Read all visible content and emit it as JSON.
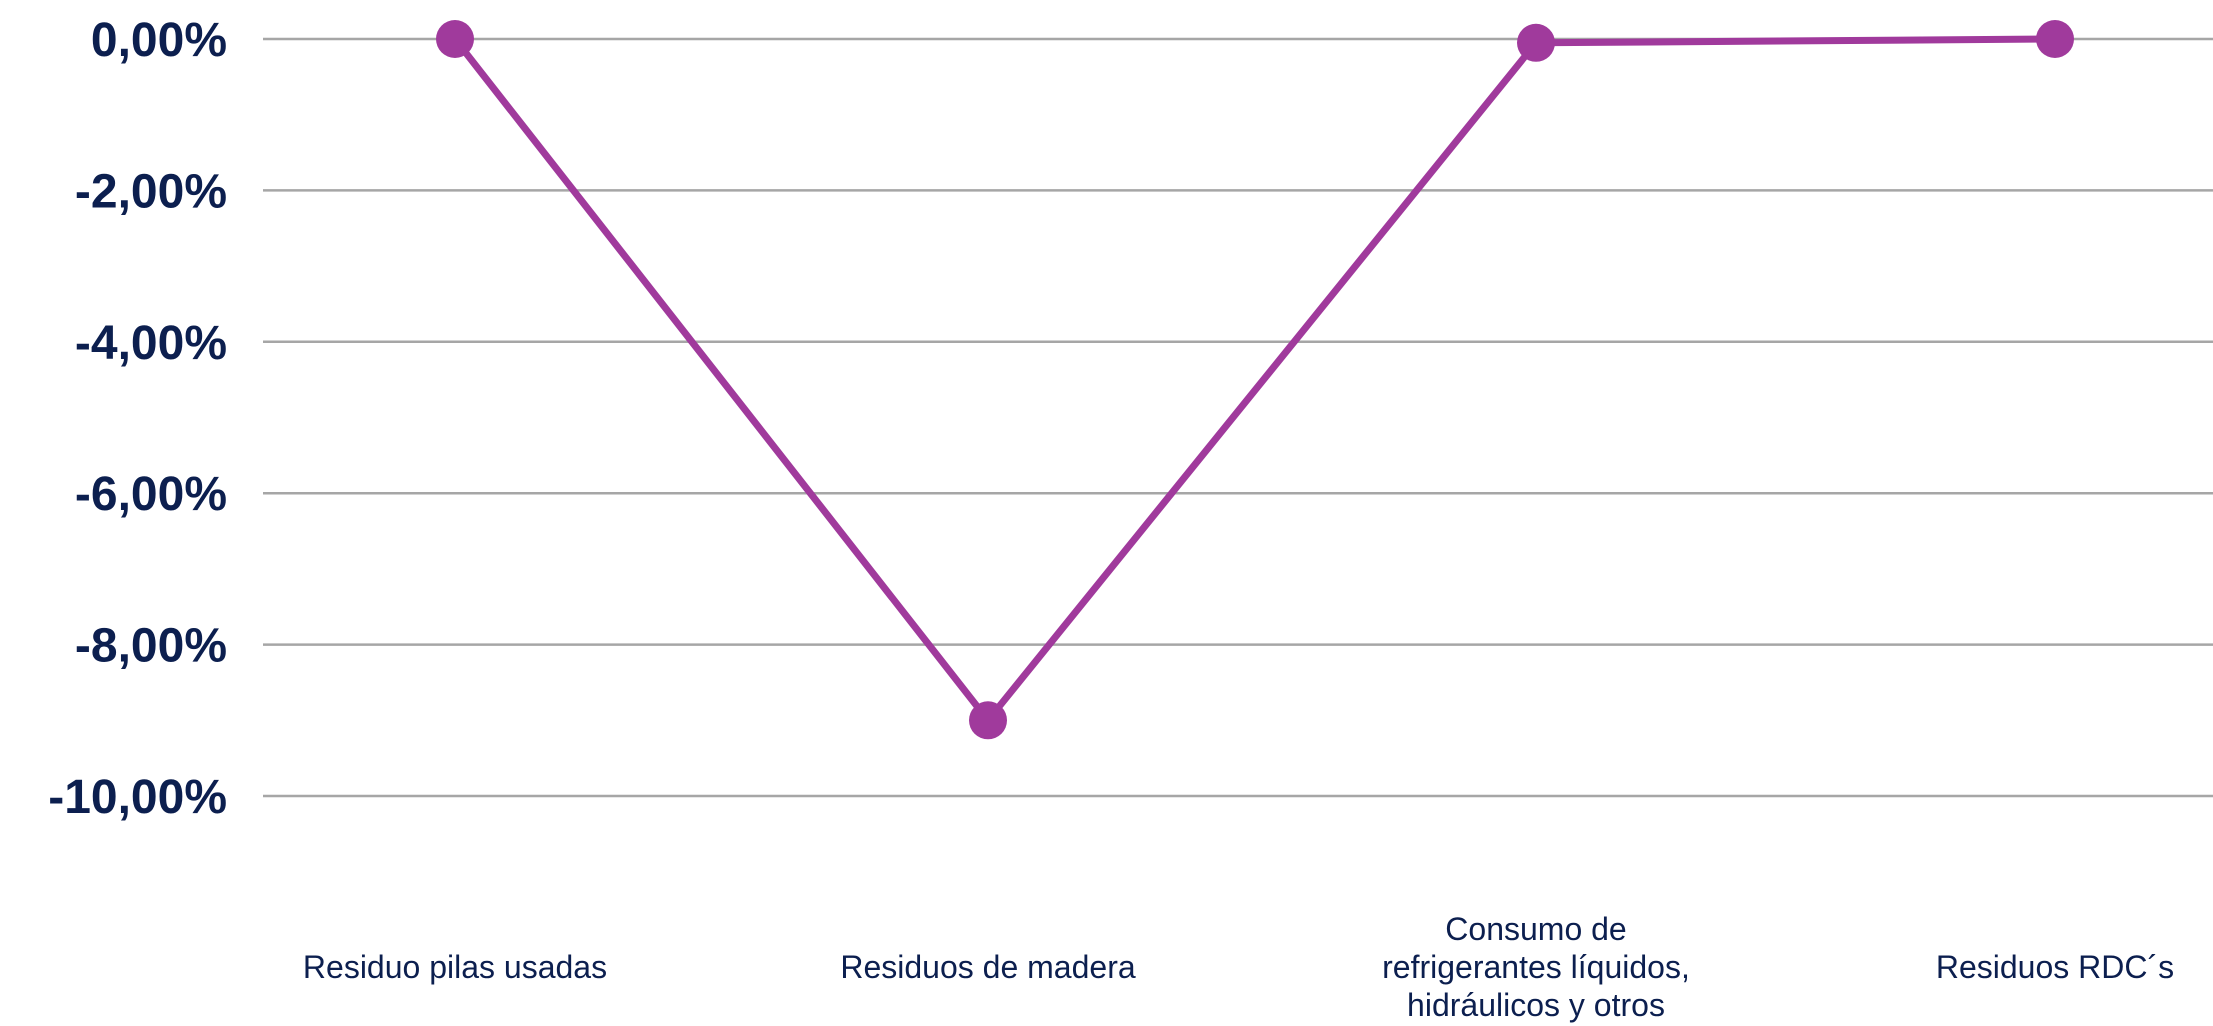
{
  "chart_data": {
    "type": "line",
    "categories": [
      "Residuo pilas usadas",
      "Residuos de madera",
      "Consumo de refrigerantes líquidos, hidráulicos y otros",
      "Residuos RDC´s"
    ],
    "category_label_lines": [
      [
        "Residuo pilas usadas"
      ],
      [
        "Residuos de madera"
      ],
      [
        "Consumo de",
        "refrigerantes líquidos,",
        "hidráulicos y otros"
      ],
      [
        "Residuos RDC´s"
      ]
    ],
    "series": [
      {
        "values": [
          0.0,
          -9.0,
          -0.05,
          0.0
        ]
      }
    ],
    "ylim": [
      -10,
      0
    ],
    "yticks": [
      0,
      -2,
      -4,
      -6,
      -8,
      -10
    ],
    "ytick_labels": [
      "0,00%",
      "-2,00%",
      "-4,00%",
      "-6,00%",
      "-8,00%",
      "-10,00%"
    ],
    "grid": true,
    "legend": "none",
    "title": "",
    "xlabel": "",
    "ylabel": "",
    "colors": {
      "line": "#a03a9c",
      "grid": "#a6a6a6",
      "axis_text": "#0c1f4f"
    }
  }
}
